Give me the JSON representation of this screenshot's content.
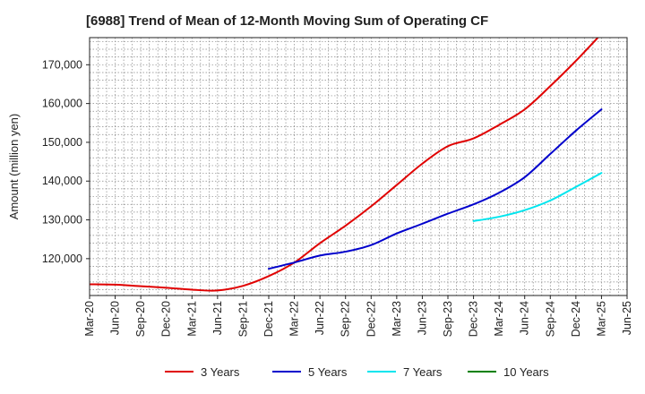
{
  "chart_data": {
    "type": "line",
    "title": "[6988]  Trend of Mean of 12-Month Moving Sum of Operating CF",
    "xlabel": "",
    "ylabel": "Amount (million yen)",
    "x": [
      "Mar-20",
      "Jun-20",
      "Sep-20",
      "Dec-20",
      "Mar-21",
      "Jun-21",
      "Sep-21",
      "Dec-21",
      "Mar-22",
      "Jun-22",
      "Sep-22",
      "Dec-22",
      "Mar-23",
      "Jun-23",
      "Sep-23",
      "Dec-23",
      "Mar-24",
      "Jun-24",
      "Sep-24",
      "Dec-24",
      "Mar-25",
      "Jun-25"
    ],
    "ylim": [
      110500,
      177000
    ],
    "yticks": [
      120000,
      130000,
      140000,
      150000,
      160000,
      170000
    ],
    "ytick_labels": [
      "120,000",
      "130,000",
      "140,000",
      "150,000",
      "160,000",
      "170,000"
    ],
    "grid": true,
    "legend_position": "bottom",
    "series": [
      {
        "name": "3 Years",
        "color": "#e00000",
        "values": [
          113400,
          113300,
          112900,
          112500,
          112000,
          111800,
          113000,
          115500,
          119000,
          124000,
          128500,
          133500,
          139000,
          144500,
          149000,
          151000,
          154500,
          158500,
          164500,
          171000,
          178000,
          null
        ]
      },
      {
        "name": "5 Years",
        "color": "#0000cc",
        "values": [
          null,
          null,
          null,
          null,
          null,
          null,
          null,
          117400,
          119000,
          120800,
          121800,
          123500,
          126500,
          129000,
          131600,
          134000,
          137000,
          141000,
          147000,
          153000,
          158500,
          null
        ]
      },
      {
        "name": "7 Years",
        "color": "#00e5ee",
        "values": [
          null,
          null,
          null,
          null,
          null,
          null,
          null,
          null,
          null,
          null,
          null,
          null,
          null,
          null,
          null,
          129700,
          130800,
          132500,
          135000,
          138500,
          142100,
          null
        ]
      },
      {
        "name": "10 Years",
        "color": "#008000",
        "values": [
          null,
          null,
          null,
          null,
          null,
          null,
          null,
          null,
          null,
          null,
          null,
          null,
          null,
          null,
          null,
          null,
          null,
          null,
          null,
          null,
          null,
          null
        ]
      }
    ]
  }
}
